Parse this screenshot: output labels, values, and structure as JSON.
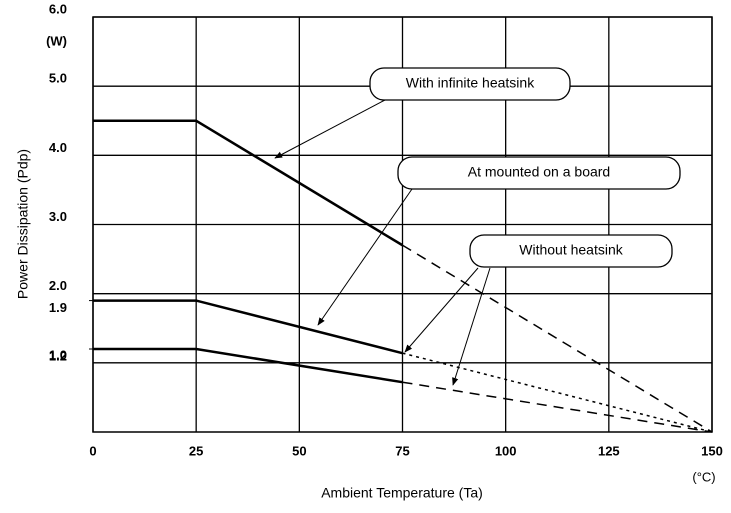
{
  "chart_data": {
    "type": "line",
    "x_label": "Ambient Temperature (Ta)",
    "y_label": "Power Dissipation (Pdp)",
    "x_unit": "(°C)",
    "y_unit": "(W)",
    "x": [
      0,
      25,
      75,
      150
    ],
    "series": [
      {
        "name": "With infinite heatsink",
        "color": "#000000",
        "values": [
          4.5,
          4.5,
          2.7,
          null
        ],
        "projection": [
          null,
          null,
          2.7,
          0
        ],
        "dash": "10,7"
      },
      {
        "name": "At mounted on a board",
        "color": "#000000",
        "values": [
          1.9,
          1.9,
          1.14,
          null
        ],
        "projection": [
          null,
          null,
          1.14,
          0
        ],
        "dash": "3,4"
      },
      {
        "name": "Without heatsink",
        "color": "#000000",
        "values": [
          1.2,
          1.2,
          0.72,
          null
        ],
        "projection": [
          null,
          null,
          0.72,
          0
        ],
        "dash": "10,7"
      }
    ],
    "xlim": [
      0,
      150
    ],
    "ylim": [
      0,
      6
    ],
    "xticks": [
      0,
      25,
      50,
      75,
      100,
      125,
      150
    ],
    "yticks": [
      {
        "value": 1,
        "label": "1.0"
      },
      {
        "value": 2,
        "label": "2.0"
      },
      {
        "value": 3,
        "label": "3.0"
      },
      {
        "value": 4,
        "label": "4.0"
      },
      {
        "value": 5,
        "label": "5.0"
      },
      {
        "value": 6,
        "label": "6.0"
      }
    ],
    "yticks_minor": [
      1.9,
      1.2
    ],
    "grid": true
  }
}
